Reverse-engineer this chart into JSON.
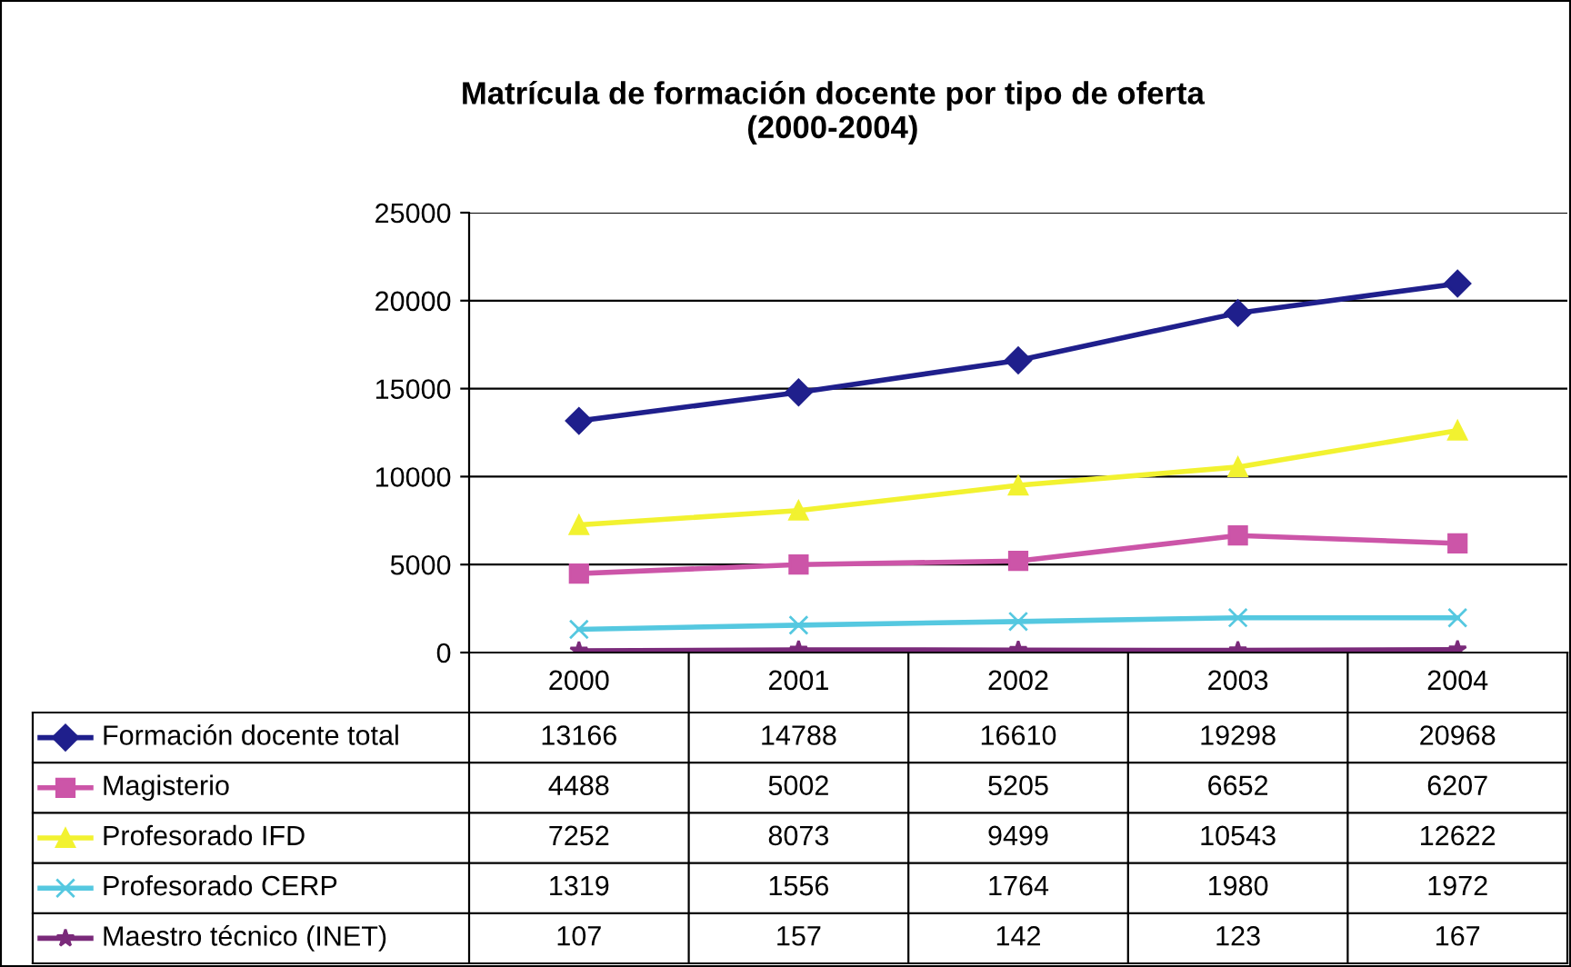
{
  "chart_data": {
    "type": "line",
    "title": "Matrícula de formación docente por tipo de oferta\n(2000-2004)",
    "categories": [
      "2000",
      "2001",
      "2002",
      "2003",
      "2004"
    ],
    "series": [
      {
        "name": "Formación docente total",
        "color": "#1f1f8c",
        "marker": "diamond",
        "values": [
          13166,
          14788,
          16610,
          19298,
          20968
        ]
      },
      {
        "name": "Magisterio",
        "color": "#cc55a8",
        "marker": "square",
        "values": [
          4488,
          5002,
          5205,
          6652,
          6207
        ]
      },
      {
        "name": "Profesorado IFD",
        "color": "#f2f230",
        "marker": "triangle",
        "values": [
          7252,
          8073,
          9499,
          10543,
          12622
        ]
      },
      {
        "name": "Profesorado CERP",
        "color": "#55c8e0",
        "marker": "cross",
        "values": [
          1319,
          1556,
          1764,
          1980,
          1972
        ]
      },
      {
        "name": "Maestro técnico (INET)",
        "color": "#7a2a7a",
        "marker": "star",
        "values": [
          107,
          157,
          142,
          123,
          167
        ]
      }
    ],
    "ylim": [
      0,
      25000
    ],
    "yticks": [
      0,
      5000,
      10000,
      15000,
      20000,
      25000
    ],
    "grid": "y",
    "legend": "bottom",
    "data_labels": true
  }
}
